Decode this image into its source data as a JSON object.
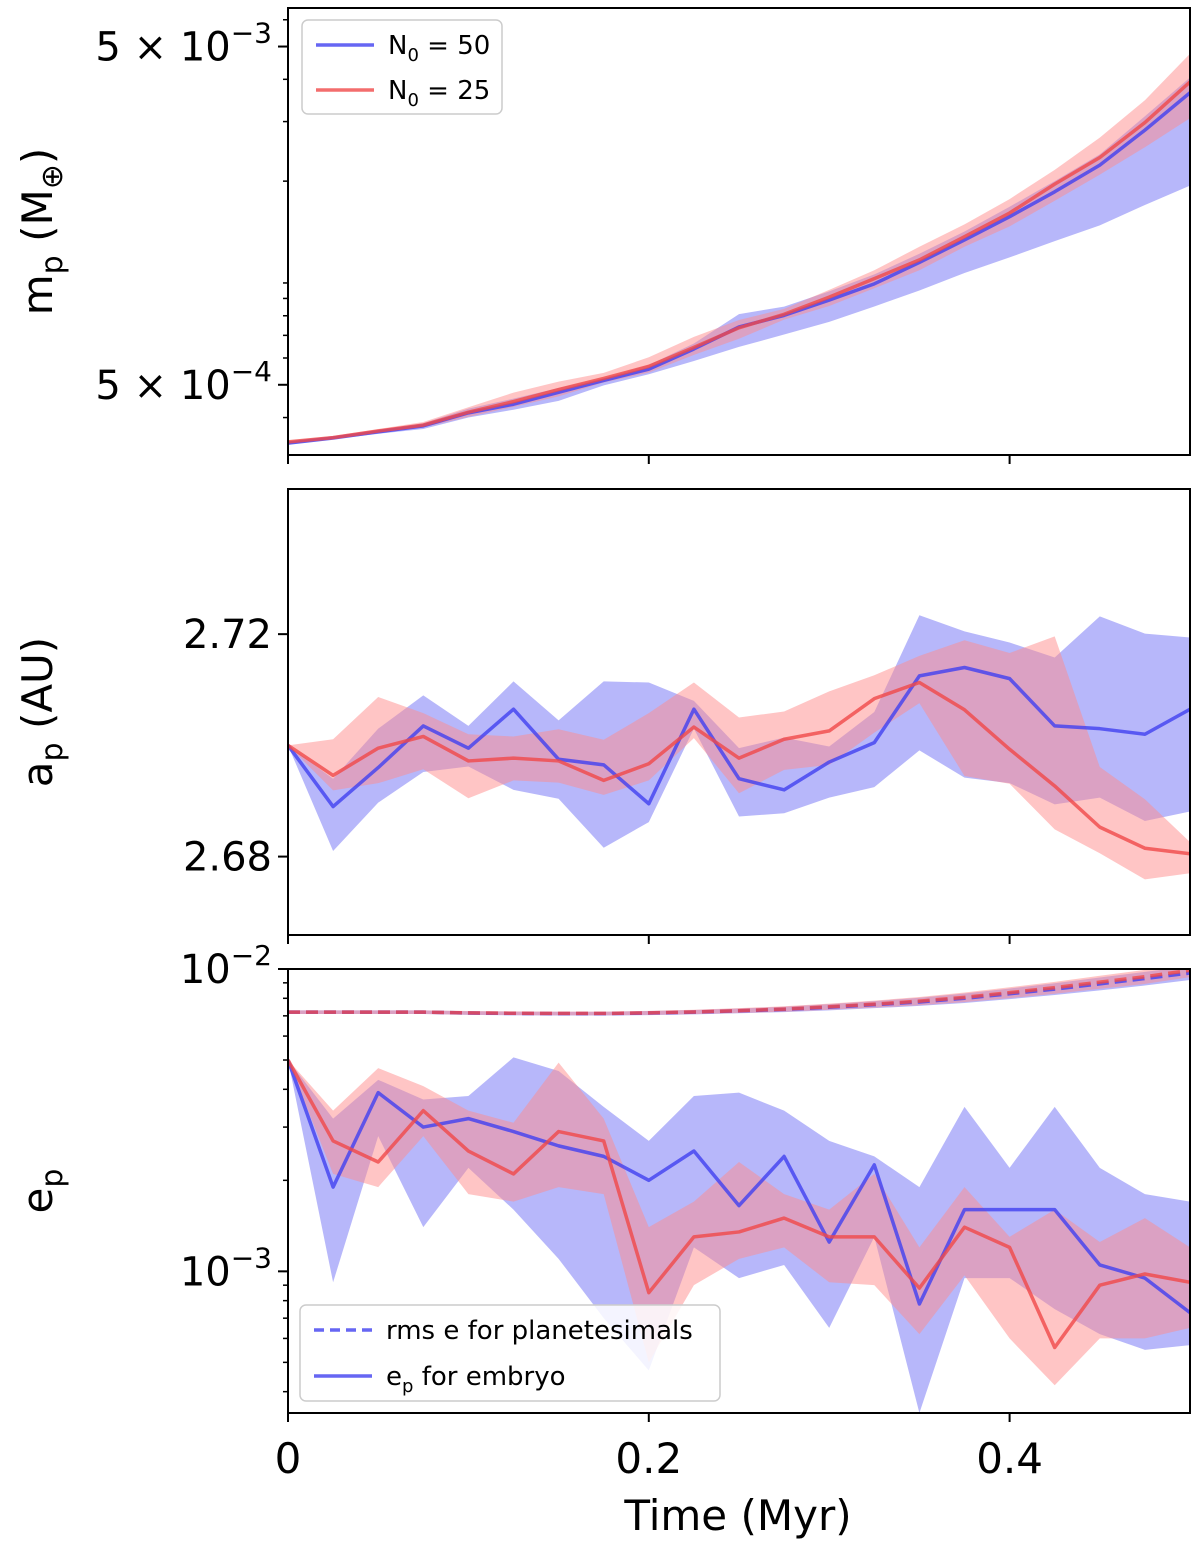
{
  "figure": {
    "xlabel": "Time (Myr)"
  },
  "colors": {
    "blue": "#4040f0",
    "red": "#f04848",
    "band_blue": "#6f6ff6",
    "band_red": "#ff8c8c"
  },
  "chart_data": [
    {
      "type": "line",
      "panel": "top",
      "ylabel_main": "m",
      "ylabel_sub": "p",
      "ylabel_unit": " (M",
      "ylabel_unit_sub": "⊕",
      "ylabel_close": ")",
      "yscale": "log",
      "ylim": [
        0.00031,
        0.0065
      ],
      "xlim": [
        0,
        0.5
      ],
      "x": [
        0,
        0.025,
        0.05,
        0.075,
        0.1,
        0.125,
        0.15,
        0.175,
        0.2,
        0.225,
        0.25,
        0.275,
        0.3,
        0.325,
        0.35,
        0.375,
        0.4,
        0.425,
        0.45,
        0.475,
        0.5
      ],
      "y_ticks": [
        {
          "value": 0.0005,
          "base": "5 × 10",
          "exp": "−4"
        },
        {
          "value": 0.005,
          "base": "5 × 10",
          "exp": "−3"
        }
      ],
      "legend": [
        {
          "label": "N",
          "sub": "0",
          "rest": " = 50",
          "color": "blue"
        },
        {
          "label": "N",
          "sub": "0",
          "rest": " = 25",
          "color": "red"
        }
      ],
      "series": [
        {
          "name": "N0 = 50",
          "color": "blue",
          "values": [
            0.000336,
            0.000348,
            0.000363,
            0.000378,
            0.000413,
            0.000438,
            0.000475,
            0.000515,
            0.000556,
            0.000638,
            0.000741,
            0.000802,
            0.00089,
            0.000994,
            0.00115,
            0.00134,
            0.00157,
            0.00186,
            0.00223,
            0.00283,
            0.00365
          ],
          "upper": [
            0.000338,
            0.000351,
            0.000368,
            0.000385,
            0.000425,
            0.000455,
            0.000489,
            0.000523,
            0.000572,
            0.000662,
            0.000809,
            0.000851,
            0.000944,
            0.00106,
            0.00122,
            0.00142,
            0.00168,
            0.002,
            0.0024,
            0.00311,
            0.00405
          ],
          "lower": [
            0.000333,
            0.000345,
            0.000358,
            0.00037,
            0.0004,
            0.000422,
            0.000448,
            0.000498,
            0.000537,
            0.000588,
            0.000647,
            0.000704,
            0.000767,
            0.000852,
            0.00095,
            0.00107,
            0.00119,
            0.00133,
            0.00148,
            0.0017,
            0.00194
          ]
        },
        {
          "name": "N0 = 25",
          "color": "red",
          "values": [
            0.000339,
            0.000349,
            0.000365,
            0.00038,
            0.000415,
            0.000446,
            0.000484,
            0.000522,
            0.000567,
            0.000645,
            0.000737,
            0.000808,
            0.000908,
            0.00103,
            0.00117,
            0.00137,
            0.00161,
            0.00196,
            0.00235,
            0.00298,
            0.00393
          ],
          "upper": [
            0.000341,
            0.000353,
            0.00037,
            0.000388,
            0.000429,
            0.000474,
            0.000511,
            0.000542,
            0.000603,
            0.000693,
            0.000777,
            0.000838,
            0.000954,
            0.00109,
            0.00128,
            0.00149,
            0.00177,
            0.00216,
            0.00269,
            0.00347,
            0.00476
          ],
          "lower": [
            0.000337,
            0.000346,
            0.000362,
            0.000374,
            0.000402,
            0.00043,
            0.000462,
            0.000508,
            0.000543,
            0.000613,
            0.000684,
            0.000779,
            0.000855,
            0.000965,
            0.00109,
            0.00128,
            0.00147,
            0.00175,
            0.00209,
            0.00252,
            0.00307
          ]
        }
      ]
    },
    {
      "type": "line",
      "panel": "middle",
      "ylabel_main": "a",
      "ylabel_sub": "p",
      "ylabel_unit": " (AU)",
      "ylabel_unit_sub": "",
      "ylabel_close": "",
      "yscale": "linear",
      "ylim": [
        2.6659,
        2.7461
      ],
      "xlim": [
        0,
        0.5
      ],
      "x": [
        0,
        0.025,
        0.05,
        0.075,
        0.1,
        0.125,
        0.15,
        0.175,
        0.2,
        0.225,
        0.25,
        0.275,
        0.3,
        0.325,
        0.35,
        0.375,
        0.4,
        0.425,
        0.45,
        0.475,
        0.5
      ],
      "y_ticks": [
        {
          "value": 2.68,
          "label": "2.68"
        },
        {
          "value": 2.72,
          "label": "2.72"
        }
      ],
      "series": [
        {
          "name": "N0 = 50",
          "color": "blue",
          "values": [
            2.7,
            2.689,
            2.696,
            2.7035,
            2.6995,
            2.7065,
            2.6975,
            2.6965,
            2.6895,
            2.7065,
            2.694,
            2.692,
            2.697,
            2.7005,
            2.7125,
            2.714,
            2.712,
            2.7035,
            2.703,
            2.702,
            2.7065
          ],
          "upper": [
            2.7,
            2.694,
            2.703,
            2.709,
            2.7035,
            2.7115,
            2.7045,
            2.7115,
            2.7113,
            2.708,
            2.6995,
            2.7014,
            2.6998,
            2.706,
            2.7234,
            2.7205,
            2.7185,
            2.7158,
            2.7232,
            2.7201,
            2.7194
          ],
          "lower": [
            2.7,
            2.681,
            2.6897,
            2.6952,
            2.6962,
            2.692,
            2.6904,
            2.6816,
            2.6862,
            2.703,
            2.6872,
            2.6878,
            2.6906,
            2.6925,
            2.6991,
            2.6942,
            2.6932,
            2.6894,
            2.6906,
            2.6864,
            2.6881
          ]
        },
        {
          "name": "N0 = 25",
          "color": "red",
          "values": [
            2.7,
            2.6946,
            2.6995,
            2.7016,
            2.6972,
            2.6977,
            2.6972,
            2.6937,
            2.6967,
            2.7033,
            2.6977,
            2.7011,
            2.7026,
            2.7084,
            2.7113,
            2.7064,
            2.6993,
            2.6927,
            2.6853,
            2.6815,
            2.6805
          ],
          "upper": [
            2.7,
            2.7011,
            2.7087,
            2.7058,
            2.702,
            2.7016,
            2.7029,
            2.701,
            2.7058,
            2.7113,
            2.705,
            2.7061,
            2.7097,
            2.7126,
            2.7161,
            2.7189,
            2.7166,
            2.7196,
            2.6961,
            2.6903,
            2.6826
          ],
          "lower": [
            2.7,
            2.6919,
            2.6932,
            2.6957,
            2.6905,
            2.6937,
            2.6933,
            2.6911,
            2.6937,
            2.7013,
            2.6914,
            2.6956,
            2.6965,
            2.7023,
            2.7076,
            2.6945,
            2.6931,
            2.6849,
            2.6806,
            2.6759,
            2.677
          ]
        }
      ]
    },
    {
      "type": "line",
      "panel": "bottom",
      "ylabel_main": "e",
      "ylabel_sub": "p",
      "ylabel_unit": "",
      "ylabel_unit_sub": "",
      "ylabel_close": "",
      "yscale": "log",
      "ylim": [
        0.00034,
        0.01
      ],
      "xlim": [
        0,
        0.5
      ],
      "x": [
        0,
        0.025,
        0.05,
        0.075,
        0.1,
        0.125,
        0.15,
        0.175,
        0.2,
        0.225,
        0.25,
        0.275,
        0.3,
        0.325,
        0.35,
        0.375,
        0.4,
        0.425,
        0.45,
        0.475,
        0.5
      ],
      "y_ticks": [
        {
          "value": 0.001,
          "base": "10",
          "exp": "−3"
        },
        {
          "value": 0.01,
          "base": "10",
          "exp": "−2"
        }
      ],
      "legend": [
        {
          "label": "rms e for planetesimals",
          "sub": "",
          "rest": "",
          "color": "blue",
          "dashed": true
        },
        {
          "label": "e",
          "sub": "p",
          "rest": " for embryo",
          "color": "blue",
          "dashed": false
        }
      ],
      "rms_series": [
        {
          "name": "rms e for planetesimals (N0 = 50)",
          "color": "blue",
          "values": [
            0.0072,
            0.0072,
            0.0072,
            0.0072,
            0.00715,
            0.00713,
            0.00712,
            0.00712,
            0.00715,
            0.0072,
            0.00727,
            0.00735,
            0.00747,
            0.00762,
            0.00778,
            0.008,
            0.00828,
            0.00858,
            0.00893,
            0.0093,
            0.0097
          ],
          "upper": [
            0.0073,
            0.0073,
            0.0073,
            0.0073,
            0.00725,
            0.00723,
            0.00722,
            0.00722,
            0.00726,
            0.00732,
            0.0074,
            0.0075,
            0.00765,
            0.00783,
            0.00803,
            0.0083,
            0.00862,
            0.00897,
            0.00937,
            0.00978,
            0.0102
          ],
          "lower": [
            0.0071,
            0.0071,
            0.0071,
            0.0071,
            0.00705,
            0.00703,
            0.00702,
            0.00702,
            0.00704,
            0.00708,
            0.00714,
            0.0072,
            0.0073,
            0.00742,
            0.00755,
            0.00772,
            0.00795,
            0.0082,
            0.0085,
            0.00882,
            0.0092
          ]
        },
        {
          "name": "rms e for planetesimals (N0 = 25)",
          "color": "red",
          "values": [
            0.0072,
            0.0072,
            0.0072,
            0.0072,
            0.00716,
            0.00714,
            0.00713,
            0.00713,
            0.00716,
            0.00721,
            0.00728,
            0.00737,
            0.0075,
            0.00765,
            0.00783,
            0.00806,
            0.00835,
            0.00868,
            0.00905,
            0.00943,
            0.0099
          ],
          "upper": [
            0.0073,
            0.0073,
            0.0073,
            0.0073,
            0.00726,
            0.00724,
            0.00723,
            0.00723,
            0.00727,
            0.00733,
            0.00742,
            0.00753,
            0.00768,
            0.00786,
            0.00808,
            0.00836,
            0.0087,
            0.00907,
            0.0095,
            0.00993,
            0.0104
          ],
          "lower": [
            0.0071,
            0.0071,
            0.0071,
            0.0071,
            0.00706,
            0.00704,
            0.00703,
            0.00703,
            0.00705,
            0.00709,
            0.00715,
            0.00722,
            0.00733,
            0.00745,
            0.00759,
            0.00777,
            0.00801,
            0.00828,
            0.0086,
            0.00893,
            0.0094
          ]
        }
      ],
      "series": [
        {
          "name": "e_p for embryo (N0 = 50)",
          "color": "blue",
          "values": [
            0.005,
            0.0019,
            0.0039,
            0.003,
            0.0032,
            0.0029,
            0.0026,
            0.0024,
            0.002,
            0.0025,
            0.00165,
            0.0024,
            0.00125,
            0.00225,
            0.00078,
            0.0016,
            0.0016,
            0.0016,
            0.00105,
            0.00095,
            0.00073
          ],
          "upper": [
            0.005,
            0.0032,
            0.0043,
            0.0037,
            0.0038,
            0.0051,
            0.0046,
            0.0035,
            0.0027,
            0.0038,
            0.0039,
            0.0034,
            0.0027,
            0.0024,
            0.0019,
            0.0035,
            0.0022,
            0.0035,
            0.0022,
            0.0018,
            0.0017
          ],
          "lower": [
            0.005,
            0.00092,
            0.0028,
            0.0014,
            0.0022,
            0.0016,
            0.0011,
            0.0007,
            0.00047,
            0.0012,
            0.00095,
            0.00105,
            0.00065,
            0.0013,
            0.00034,
            0.00095,
            0.00095,
            0.00075,
            0.00062,
            0.00055,
            0.00057
          ]
        },
        {
          "name": "e_p for embryo (N0 = 25)",
          "color": "red",
          "values": [
            0.005,
            0.0027,
            0.0023,
            0.0034,
            0.0025,
            0.0021,
            0.0029,
            0.0027,
            0.00085,
            0.0013,
            0.00135,
            0.0015,
            0.0013,
            0.0013,
            0.00088,
            0.0014,
            0.0012,
            0.00056,
            0.0009,
            0.00098,
            0.00092
          ],
          "upper": [
            0.005,
            0.0034,
            0.0047,
            0.0041,
            0.0034,
            0.0031,
            0.0049,
            0.0032,
            0.0014,
            0.0017,
            0.0023,
            0.0018,
            0.0016,
            0.0021,
            0.0012,
            0.0019,
            0.0013,
            0.0016,
            0.00125,
            0.0015,
            0.0012
          ],
          "lower": [
            0.005,
            0.0021,
            0.0019,
            0.0028,
            0.0018,
            0.0017,
            0.0019,
            0.0018,
            0.0005,
            0.0009,
            0.0011,
            0.0012,
            0.00092,
            0.0009,
            0.00062,
            0.00097,
            0.0006,
            0.00042,
            0.0006,
            0.0006,
            0.00065
          ]
        }
      ]
    }
  ],
  "x_ticks": [
    {
      "value": 0,
      "label": "0"
    },
    {
      "value": 0.2,
      "label": "0.2"
    },
    {
      "value": 0.4,
      "label": "0.4"
    }
  ]
}
